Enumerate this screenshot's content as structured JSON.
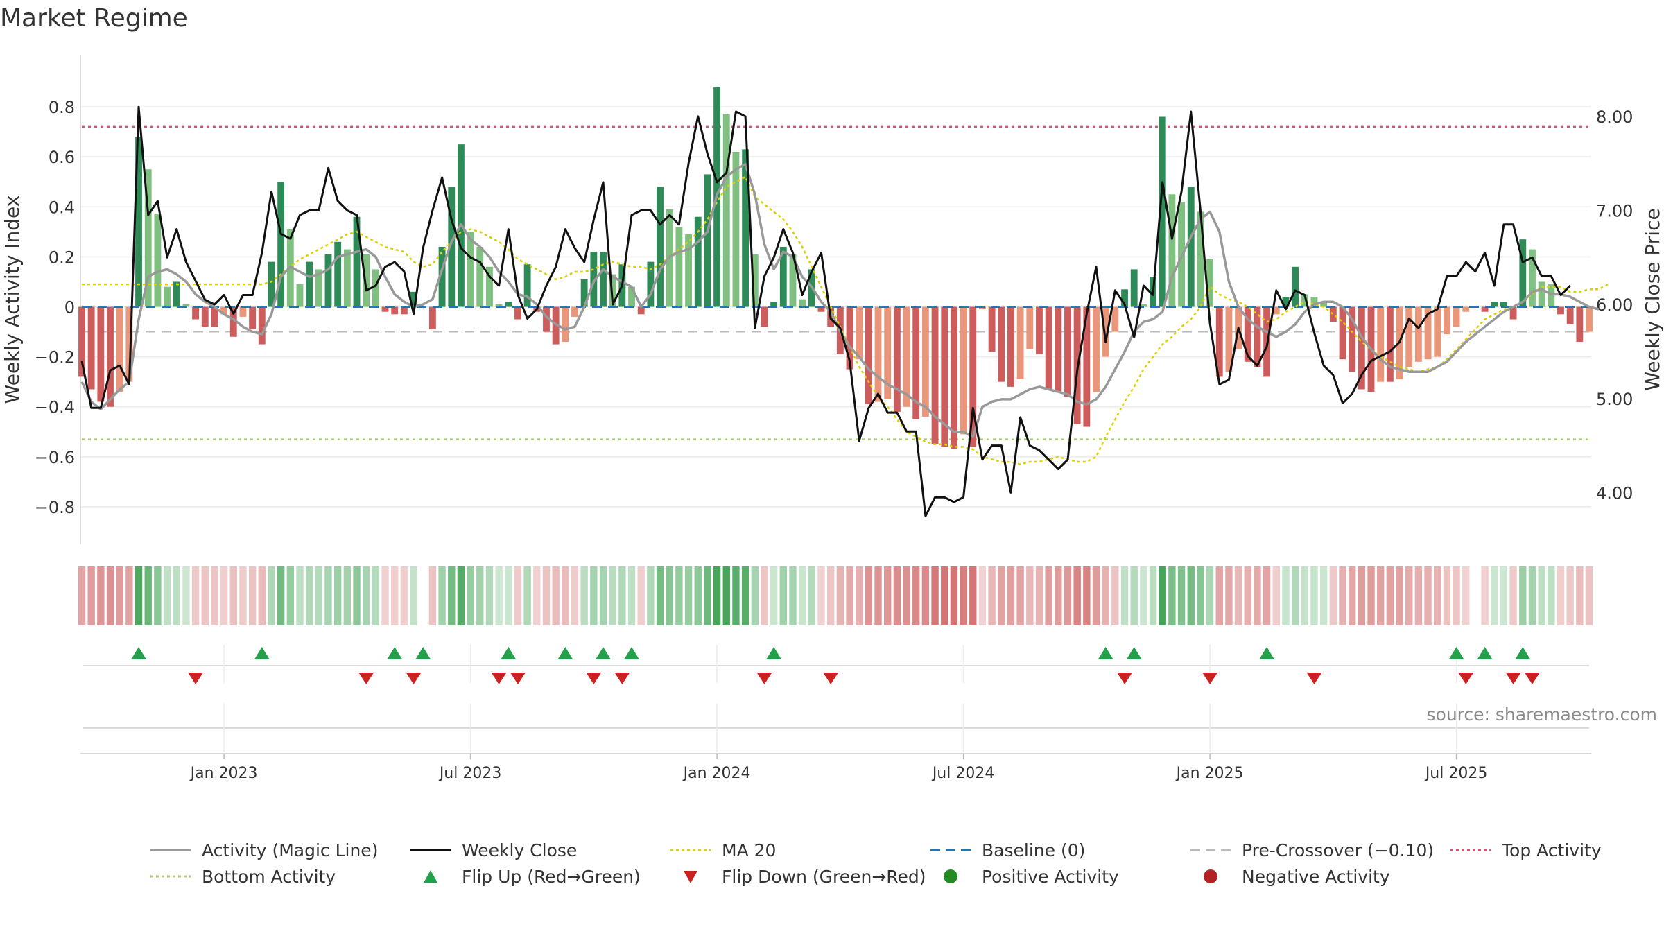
{
  "title": "Market Regime",
  "source": "source: sharemaestro.com",
  "colors": {
    "pos_strong": "#2e8b57",
    "pos_light": "#7fbf7f",
    "neg_strong": "#cd5c5c",
    "neg_light": "#e9967a",
    "close": "#111111",
    "magic": "#999999",
    "ma20": "#ddd000",
    "baseline": "#1f77b4",
    "precross": "#bbbbbb",
    "top": "#e05070",
    "bottom": "#a8d070",
    "flip_up": "#22a04a",
    "flip_down": "#cc2222"
  },
  "chart_data": {
    "type": "bar",
    "ylabel": "Weekly Activity Index",
    "y2label": "Weekly Close Price",
    "ylim": [
      -0.95,
      0.95
    ],
    "y2lim": [
      3.45,
      8.5
    ],
    "yticks": [
      0.8,
      0.6,
      0.4,
      0.2,
      0,
      -0.2,
      -0.4,
      -0.6,
      -0.8
    ],
    "ytick_labels": [
      "0.8",
      "0.6",
      "0.4",
      "0.2",
      "0",
      "−0.2",
      "−0.4",
      "−0.6",
      "−0.8"
    ],
    "y2ticks": [
      8.0,
      7.0,
      6.0,
      5.0,
      4.0
    ],
    "y2tick_labels": [
      "8.00",
      "7.00",
      "6.00",
      "5.00",
      "4.00"
    ],
    "xtick_labels": [
      "Jan 2023",
      "Jul 2023",
      "Jan 2024",
      "Jul 2024",
      "Jan 2025",
      "Jul 2025"
    ],
    "xtick_weeks": [
      15,
      41,
      67,
      93,
      119,
      145
    ],
    "top_activity": 0.72,
    "bottom_activity": -0.53,
    "precrossover": -0.1,
    "activity": [
      -0.28,
      -0.33,
      -0.38,
      -0.4,
      -0.34,
      -0.3,
      0.68,
      0.55,
      0.37,
      0.08,
      0.1,
      0.01,
      -0.05,
      -0.08,
      -0.08,
      -0.03,
      -0.12,
      -0.04,
      -0.09,
      -0.15,
      0.18,
      0.5,
      0.31,
      0.09,
      0.18,
      0.15,
      0.21,
      0.26,
      0.23,
      0.36,
      0.21,
      0.15,
      -0.02,
      -0.03,
      -0.03,
      0.06,
      0,
      -0.09,
      0.24,
      0.48,
      0.65,
      0.3,
      0.24,
      0.16,
      0.01,
      0.02,
      -0.05,
      0.17,
      -0.02,
      -0.1,
      -0.15,
      -0.14,
      -0.04,
      0.11,
      0.22,
      0.22,
      0.13,
      0.17,
      0.08,
      -0.03,
      0.18,
      0.48,
      0.39,
      0.32,
      0.29,
      0.36,
      0.53,
      0.88,
      0.77,
      0.62,
      0.63,
      0.21,
      -0.08,
      0.02,
      0.24,
      0.21,
      0.03,
      0.15,
      -0.02,
      -0.08,
      -0.19,
      -0.25,
      -0.21,
      -0.39,
      -0.38,
      -0.37,
      -0.42,
      -0.4,
      -0.45,
      -0.44,
      -0.55,
      -0.56,
      -0.57,
      -0.51,
      -0.56,
      -0.01,
      -0.18,
      -0.3,
      -0.32,
      -0.29,
      -0.17,
      -0.19,
      -0.33,
      -0.34,
      -0.36,
      -0.47,
      -0.48,
      -0.34,
      -0.2,
      -0.1,
      0.07,
      0.15,
      0.01,
      0.12,
      0.76,
      0.45,
      0.42,
      0.48,
      0.38,
      0.19,
      -0.28,
      -0.26,
      -0.17,
      -0.22,
      -0.24,
      -0.28,
      -0.03,
      0.04,
      0.16,
      0.05,
      0.04,
      0.02,
      -0.06,
      -0.21,
      -0.26,
      -0.33,
      -0.34,
      -0.3,
      -0.3,
      -0.29,
      -0.24,
      -0.22,
      -0.21,
      -0.2,
      -0.11,
      -0.08,
      -0.02,
      0,
      -0.02,
      0.02,
      0.02,
      -0.05,
      0.27,
      0.23,
      0.1,
      0.09,
      -0.03,
      -0.07,
      -0.14,
      -0.1
    ],
    "close": [
      5.4,
      4.9,
      4.9,
      5.3,
      5.35,
      5.15,
      8.1,
      6.95,
      7.1,
      6.5,
      6.8,
      6.45,
      6.25,
      6.05,
      6.0,
      6.1,
      5.9,
      6.1,
      6.1,
      6.55,
      7.2,
      6.75,
      6.7,
      6.95,
      7.0,
      7.0,
      7.45,
      7.1,
      7.0,
      6.95,
      6.15,
      6.2,
      6.4,
      6.45,
      6.35,
      5.9,
      6.6,
      7.0,
      7.35,
      6.9,
      6.6,
      6.5,
      6.45,
      6.3,
      6.2,
      6.8,
      6.1,
      5.85,
      5.95,
      6.2,
      6.4,
      6.8,
      6.6,
      6.45,
      6.9,
      7.3,
      6.0,
      6.2,
      6.95,
      7.0,
      7.0,
      6.85,
      6.95,
      6.85,
      7.5,
      8.0,
      7.6,
      7.3,
      7.4,
      8.05,
      8.0,
      5.75,
      6.3,
      6.5,
      6.8,
      6.55,
      6.1,
      6.35,
      6.55,
      5.85,
      5.75,
      5.4,
      4.55,
      4.9,
      5.05,
      4.85,
      4.85,
      4.65,
      4.65,
      3.75,
      3.95,
      3.95,
      3.9,
      3.95,
      4.9,
      4.35,
      4.5,
      4.5,
      4.0,
      4.8,
      4.5,
      4.45,
      4.35,
      4.25,
      4.35,
      5.3,
      5.9,
      6.4,
      5.6,
      6.15,
      6.0,
      5.65,
      6.2,
      6.1,
      7.3,
      6.7,
      7.2,
      8.05,
      7.0,
      5.8,
      5.15,
      5.2,
      5.75,
      5.45,
      5.35,
      5.55,
      6.15,
      5.95,
      6.15,
      6.1,
      5.7,
      5.35,
      5.25,
      4.95,
      5.05,
      5.25,
      5.4,
      5.45,
      5.5,
      5.6,
      5.85,
      5.75,
      5.9,
      5.95,
      6.3,
      6.3,
      6.45,
      6.35,
      6.55,
      6.2,
      6.85,
      6.85,
      6.45,
      6.5,
      6.3,
      6.3,
      6.1,
      6.2
    ],
    "magic": [
      -0.3,
      -0.38,
      -0.41,
      -0.37,
      -0.33,
      -0.3,
      -0.05,
      0.12,
      0.14,
      0.15,
      0.13,
      0.1,
      0.05,
      0.02,
      0,
      -0.03,
      -0.05,
      -0.08,
      -0.1,
      -0.11,
      -0.03,
      0.12,
      0.16,
      0.14,
      0.12,
      0.13,
      0.15,
      0.2,
      0.21,
      0.22,
      0.23,
      0.2,
      0.12,
      0.05,
      0.02,
      0,
      0.01,
      0.03,
      0.15,
      0.26,
      0.33,
      0.27,
      0.24,
      0.2,
      0.14,
      0.1,
      0.05,
      0.04,
      0.01,
      -0.04,
      -0.07,
      -0.09,
      -0.08,
      0,
      0.1,
      0.15,
      0.12,
      0.1,
      0.08,
      0,
      0.05,
      0.15,
      0.2,
      0.22,
      0.23,
      0.26,
      0.3,
      0.45,
      0.52,
      0.55,
      0.57,
      0.45,
      0.25,
      0.15,
      0.22,
      0.2,
      0.12,
      0.08,
      0.02,
      -0.02,
      -0.1,
      -0.16,
      -0.2,
      -0.25,
      -0.28,
      -0.31,
      -0.33,
      -0.35,
      -0.38,
      -0.4,
      -0.44,
      -0.47,
      -0.5,
      -0.5,
      -0.52,
      -0.4,
      -0.38,
      -0.37,
      -0.37,
      -0.35,
      -0.33,
      -0.32,
      -0.33,
      -0.34,
      -0.35,
      -0.38,
      -0.39,
      -0.37,
      -0.32,
      -0.25,
      -0.18,
      -0.1,
      -0.06,
      -0.05,
      -0.02,
      0.12,
      0.2,
      0.28,
      0.35,
      0.38,
      0.3,
      0.1,
      0,
      -0.05,
      -0.08,
      -0.1,
      -0.12,
      -0.1,
      -0.07,
      -0.02,
      0.01,
      0.02,
      0.02,
      0,
      -0.05,
      -0.12,
      -0.17,
      -0.21,
      -0.24,
      -0.25,
      -0.26,
      -0.26,
      -0.26,
      -0.24,
      -0.22,
      -0.18,
      -0.14,
      -0.11,
      -0.08,
      -0.05,
      -0.02,
      0,
      0.02,
      0.06,
      0.07,
      0.05,
      0.05,
      0.04,
      0.02,
      0,
      -0.01
    ],
    "ma20": [
      0.09,
      0.09,
      0.09,
      0.09,
      0.09,
      0.09,
      0.09,
      0.09,
      0.09,
      0.09,
      0.09,
      0.09,
      0.09,
      0.09,
      0.09,
      0.09,
      0.09,
      0.09,
      0.09,
      0.09,
      0.1,
      0.13,
      0.16,
      0.19,
      0.21,
      0.23,
      0.25,
      0.27,
      0.29,
      0.3,
      0.28,
      0.26,
      0.24,
      0.23,
      0.22,
      0.18,
      0.16,
      0.17,
      0.22,
      0.26,
      0.3,
      0.31,
      0.3,
      0.28,
      0.26,
      0.23,
      0.19,
      0.17,
      0.15,
      0.13,
      0.11,
      0.12,
      0.14,
      0.14,
      0.15,
      0.17,
      0.18,
      0.17,
      0.16,
      0.16,
      0.15,
      0.17,
      0.2,
      0.23,
      0.26,
      0.3,
      0.35,
      0.42,
      0.48,
      0.5,
      0.52,
      0.44,
      0.41,
      0.38,
      0.35,
      0.3,
      0.24,
      0.16,
      0.08,
      0,
      -0.08,
      -0.16,
      -0.24,
      -0.3,
      -0.36,
      -0.4,
      -0.45,
      -0.5,
      -0.52,
      -0.54,
      -0.55,
      -0.55,
      -0.56,
      -0.56,
      -0.57,
      -0.6,
      -0.61,
      -0.62,
      -0.62,
      -0.63,
      -0.62,
      -0.62,
      -0.61,
      -0.6,
      -0.61,
      -0.62,
      -0.62,
      -0.6,
      -0.52,
      -0.45,
      -0.38,
      -0.32,
      -0.25,
      -0.2,
      -0.15,
      -0.12,
      -0.08,
      -0.05,
      0,
      0.08,
      0.05,
      0.03,
      0.02,
      0,
      -0.03,
      -0.06,
      -0.05,
      -0.02,
      0,
      0.02,
      0.01,
      0,
      -0.03,
      -0.06,
      -0.1,
      -0.14,
      -0.17,
      -0.2,
      -0.22,
      -0.24,
      -0.25,
      -0.26,
      -0.25,
      -0.24,
      -0.21,
      -0.17,
      -0.13,
      -0.09,
      -0.05,
      -0.03,
      -0.01,
      0,
      0.02,
      0.05,
      0.08,
      0.08,
      0.08,
      0.06,
      0.06,
      0.07,
      0.07,
      0.09
    ],
    "flips_up": [
      6,
      19,
      33,
      36,
      45,
      51,
      55,
      58,
      73,
      108,
      111,
      125,
      145,
      148,
      152
    ],
    "flips_down": [
      12,
      30,
      35,
      44,
      46,
      54,
      57,
      72,
      79,
      110,
      119,
      130,
      146,
      151,
      153
    ]
  },
  "legend": [
    {
      "label": "Activity (Magic Line)",
      "icon": "solid-line-gray"
    },
    {
      "label": "Weekly Close",
      "icon": "solid-line-black"
    },
    {
      "label": "MA 20",
      "icon": "dotted-line-yellow"
    },
    {
      "label": "Baseline (0)",
      "icon": "dashed-line-blue"
    },
    {
      "label": "Pre-Crossover (−0.10)",
      "icon": "dashed-line-gray"
    },
    {
      "label": "Top Activity",
      "icon": "dotted-line-red"
    },
    {
      "label": "Bottom Activity",
      "icon": "dotted-line-green"
    },
    {
      "label": "Flip Up (Red→Green)",
      "icon": "triangle-up-green"
    },
    {
      "label": "Flip Down (Green→Red)",
      "icon": "triangle-down-red"
    },
    {
      "label": "Positive Activity",
      "icon": "circle-green"
    },
    {
      "label": "Negative Activity",
      "icon": "circle-red"
    }
  ]
}
